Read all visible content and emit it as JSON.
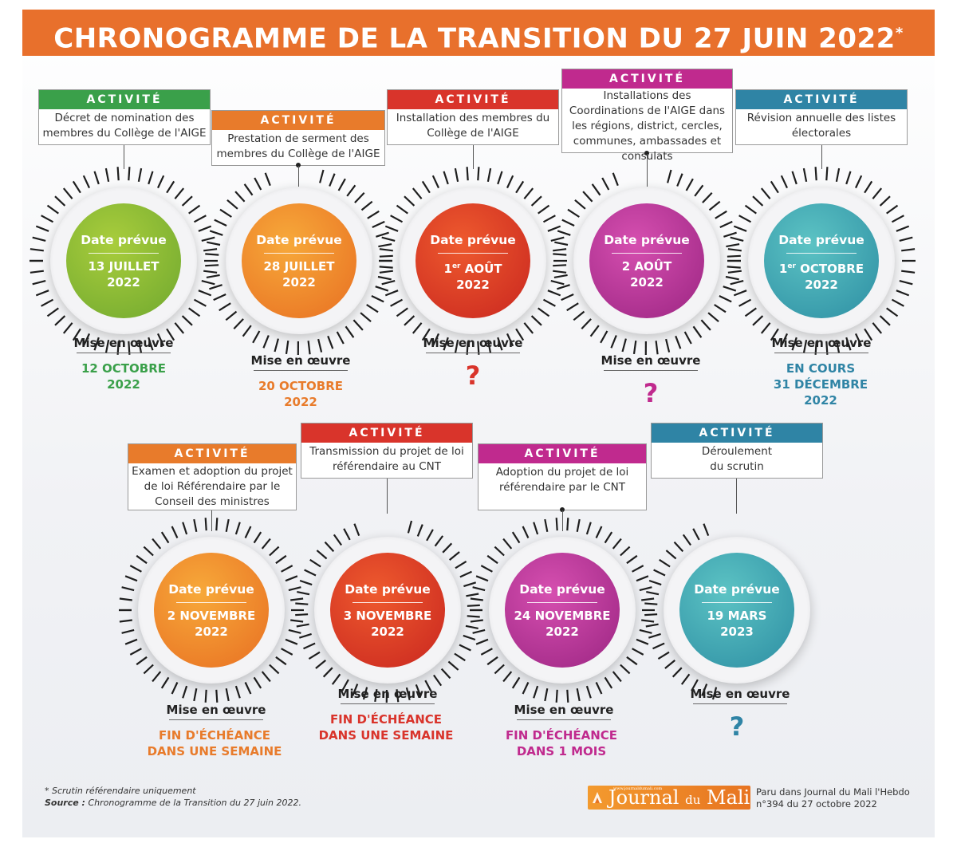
{
  "title": {
    "text": "CHRONOGRAMME DE LA TRANSITION DU 27 JUIN 2022",
    "mark": "*"
  },
  "colors": {
    "green": "#3aa04a",
    "orange": "#e87b2b",
    "red": "#d9342b",
    "magenta": "#c02a8e",
    "teal": "#2f84a5"
  },
  "items": [
    {
      "activity_label": "ACTIVITÉ",
      "activity_text": "Décret de nomination des membres du Collège de l'AIGE",
      "date_label": "Date prévue",
      "date_line1": "13 JUILLET",
      "date_line2": "2022",
      "mise_label": "Mise en œuvre",
      "status_lines": [
        "12 OCTOBRE",
        "2022"
      ],
      "color": "green"
    },
    {
      "activity_label": "ACTIVITÉ",
      "activity_text": "Prestation de serment des membres du Collège de l'AIGE",
      "date_label": "Date prévue",
      "date_line1": "28 JUILLET",
      "date_line2": "2022",
      "mise_label": "Mise en œuvre",
      "status_lines": [
        "20 OCTOBRE",
        "2022"
      ],
      "color": "orange"
    },
    {
      "activity_label": "ACTIVITÉ",
      "activity_text": "Installation des membres du Collège de l'AIGE",
      "date_label": "Date prévue",
      "date_line1_pre": "1",
      "date_line1_sup": "er",
      "date_line1_post": " AOÛT",
      "date_line2": "2022",
      "mise_label": "Mise en œuvre",
      "status_q": "?",
      "color": "red"
    },
    {
      "activity_label": "ACTIVITÉ",
      "activity_text": "Installations des Coordinations de l'AIGE dans les régions, district, cercles, communes, ambassades et consulats",
      "date_label": "Date prévue",
      "date_line1": "2 AOÛT",
      "date_line2": "2022",
      "mise_label": "Mise en œuvre",
      "status_q": "?",
      "color": "magenta"
    },
    {
      "activity_label": "ACTIVITÉ",
      "activity_text": "Révision annuelle des listes électorales",
      "date_label": "Date prévue",
      "date_line1_pre": "1",
      "date_line1_sup": "er",
      "date_line1_post": " OCTOBRE",
      "date_line2": "2022",
      "mise_label": "Mise en œuvre",
      "status_lines": [
        "EN COURS",
        "31 DÉCEMBRE",
        "2022"
      ],
      "color": "teal"
    },
    {
      "activity_label": "ACTIVITÉ",
      "activity_text": "Examen et adoption du projet de loi Référendaire par le Conseil des ministres",
      "date_label": "Date prévue",
      "date_line1": "2 NOVEMBRE",
      "date_line2": "2022",
      "mise_label": "Mise en œuvre",
      "status_lines": [
        "FIN D'ÉCHÉANCE",
        "DANS UNE SEMAINE"
      ],
      "color": "orange"
    },
    {
      "activity_label": "ACTIVITÉ",
      "activity_text": "Transmission du projet de loi référendaire au CNT",
      "date_label": "Date prévue",
      "date_line1": "3 NOVEMBRE",
      "date_line2": "2022",
      "mise_label": "Mise en œuvre",
      "status_lines": [
        "FIN D'ÉCHÉANCE",
        "DANS UNE SEMAINE"
      ],
      "color": "red"
    },
    {
      "activity_label": "ACTIVITÉ",
      "activity_text": "Adoption du projet de loi référendaire par le CNT",
      "date_label": "Date prévue",
      "date_line1": "24 NOVEMBRE",
      "date_line2": "2022",
      "mise_label": "Mise en œuvre",
      "status_lines": [
        "FIN D'ÉCHÉANCE",
        "DANS 1 MOIS"
      ],
      "color": "magenta"
    },
    {
      "activity_label": "ACTIVITÉ",
      "activity_text": "Déroulement du scrutin",
      "date_label": "Date prévue",
      "date_line1": "19 MARS",
      "date_line2": "2023",
      "mise_label": "Mise en œuvre",
      "status_q": "?",
      "color": "teal"
    }
  ],
  "footer": {
    "note": "* Scrutin référendaire uniquement",
    "source_label": "Source :",
    "source_text": "Chronogramme de la Transition du 27 juin 2022.",
    "logo_url": "www.journaldumali.com",
    "logo_name": "Journal",
    "logo_du": "du",
    "logo_mali": "Mali",
    "published_line1": "Paru dans Journal du Mali l'Hebdo",
    "published_line2": "n°394 du 27 octobre 2022"
  }
}
